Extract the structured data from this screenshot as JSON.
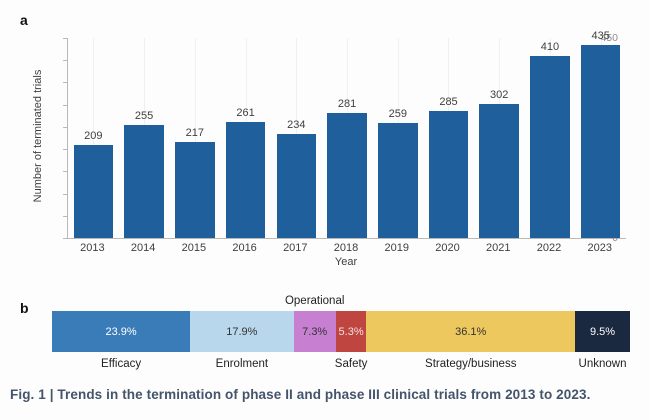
{
  "figure": {
    "panel_a_label": "a",
    "panel_b_label": "b",
    "caption": "Fig. 1 | Trends in the termination of phase II and phase III clinical trials from 2013 to 2023."
  },
  "chart_data": [
    {
      "type": "bar",
      "title": "",
      "xlabel": "Year",
      "ylabel": "Number of terminated trials",
      "categories": [
        "2013",
        "2014",
        "2015",
        "2016",
        "2017",
        "2018",
        "2019",
        "2020",
        "2021",
        "2022",
        "2023"
      ],
      "values": [
        209,
        255,
        217,
        261,
        234,
        281,
        259,
        285,
        302,
        410,
        435
      ],
      "ylim": [
        0,
        450
      ],
      "ytick_step": 50,
      "bar_color": "#1f5f9c",
      "grid": "faint-vertical",
      "legend": "none"
    },
    {
      "type": "stacked-bar",
      "title": "",
      "unit": "%",
      "segments": [
        {
          "label": "Efficacy",
          "value": 23.9,
          "display": "23.9%",
          "color": "#3a7cb8",
          "text_color": "#ffffff",
          "label_position": "below"
        },
        {
          "label": "Enrolment",
          "value": 17.9,
          "display": "17.9%",
          "color": "#b9d7ec",
          "text_color": "#333333",
          "label_position": "below"
        },
        {
          "label": "Operational",
          "value": 7.3,
          "display": "7.3%",
          "color": "#c77fd2",
          "text_color": "#333333",
          "label_position": "above"
        },
        {
          "label": "Safety",
          "value": 5.3,
          "display": "5.3%",
          "color": "#bf4540",
          "text_color": "#f6e0de",
          "label_position": "below"
        },
        {
          "label": "Strategy/business",
          "value": 36.1,
          "display": "36.1%",
          "color": "#ecc85e",
          "text_color": "#333333",
          "label_position": "below"
        },
        {
          "label": "Unknown",
          "value": 9.5,
          "display": "9.5%",
          "color": "#1b2940",
          "text_color": "#ffffff",
          "label_position": "below"
        }
      ]
    }
  ]
}
